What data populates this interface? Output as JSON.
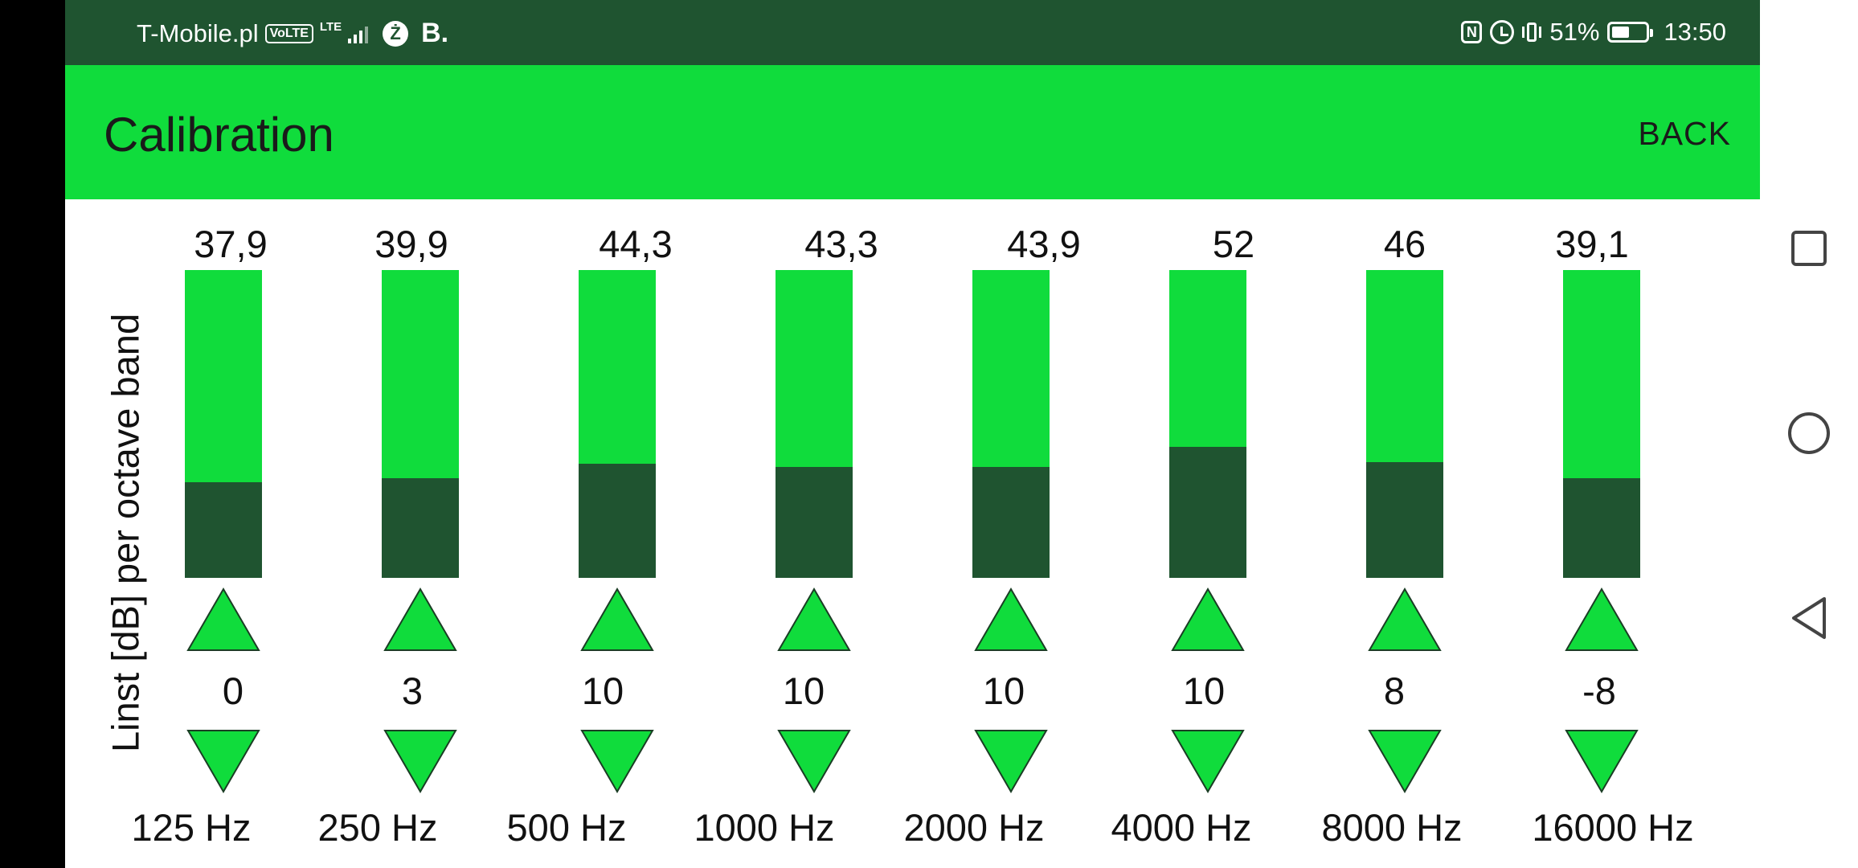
{
  "status_bar": {
    "carrier": "T-Mobile.pl",
    "volte_badge": "VoLTE",
    "network_type": "LTE",
    "app_badge": "Ż",
    "app_letter": "B.",
    "nfc_icon": "nfc-icon",
    "battery_percent": "51%",
    "battery_level": 0.51,
    "time": "13:50"
  },
  "app_bar": {
    "title": "Calibration",
    "back_label": "BACK"
  },
  "colors": {
    "accent": "#10dc3c",
    "dark": "#1f5430",
    "text": "#111111"
  },
  "y_axis_label": "Linst [dB] per octave band",
  "bands": [
    {
      "level": "37,9",
      "fill": 0.31,
      "offset": "0",
      "freq": "125 Hz"
    },
    {
      "level": "39,9",
      "fill": 0.325,
      "offset": "3",
      "freq": "250 Hz"
    },
    {
      "level": "44,3",
      "fill": 0.37,
      "offset": "10",
      "freq": "500 Hz"
    },
    {
      "level": "43,3",
      "fill": 0.36,
      "offset": "10",
      "freq": "1000 Hz"
    },
    {
      "level": "43,9",
      "fill": 0.36,
      "offset": "10",
      "freq": "2000 Hz"
    },
    {
      "level": "52",
      "fill": 0.425,
      "offset": "10",
      "freq": "4000 Hz"
    },
    {
      "level": "46",
      "fill": 0.375,
      "offset": "8",
      "freq": "8000 Hz"
    },
    {
      "level": "39,1",
      "fill": 0.325,
      "offset": "-8",
      "freq": "16000 Hz"
    }
  ],
  "nav_bar": {
    "recents_icon": "square-icon",
    "home_icon": "circle-icon",
    "back_icon": "triangle-back-icon"
  }
}
